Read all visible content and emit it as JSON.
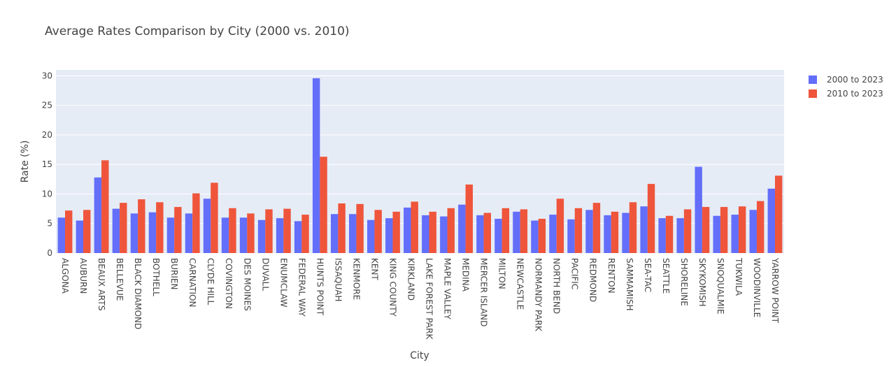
{
  "chart_data": {
    "type": "bar",
    "title": "Average Rates Comparison by City (2000 vs. 2010)",
    "xlabel": "City",
    "ylabel": "Rate (%)",
    "ylim": [
      0,
      31
    ],
    "yticks": [
      0,
      5,
      10,
      15,
      20,
      25,
      30
    ],
    "grid": true,
    "legend_position": "top-right",
    "categories": [
      "ALGONA",
      "AUBURN",
      "BEAUX ARTS",
      "BELLEVUE",
      "BLACK DIAMOND",
      "BOTHELL",
      "BURIEN",
      "CARNATION",
      "CLYDE HILL",
      "COVINGTON",
      "DES MOINES",
      "DUVALL",
      "ENUMCLAW",
      "FEDERAL WAY",
      "HUNTS POINT",
      "ISSAQUAH",
      "KENMORE",
      "KENT",
      "KING COUNTY",
      "KIRKLAND",
      "LAKE FOREST PARK",
      "MAPLE VALLEY",
      "MEDINA",
      "MERCER ISLAND",
      "MILTON",
      "NEWCASTLE",
      "NORMANDY PARK",
      "NORTH BEND",
      "PACIFIC",
      "REDMOND",
      "RENTON",
      "SAMMAMISH",
      "SEA-TAC",
      "SEATTLE",
      "SHORELINE",
      "SKYKOMISH",
      "SNOQUALMIE",
      "TUKWILA",
      "WOODINVILLE",
      "YARROW POINT"
    ],
    "series": [
      {
        "name": "2000 to 2023",
        "color": "#636efa",
        "values": [
          6.0,
          5.5,
          12.8,
          7.5,
          6.7,
          6.9,
          6.0,
          6.7,
          9.2,
          6.0,
          6.0,
          5.6,
          5.9,
          5.4,
          29.6,
          6.6,
          6.6,
          5.6,
          5.9,
          7.7,
          6.4,
          6.2,
          8.2,
          6.4,
          5.8,
          7.0,
          5.5,
          6.5,
          5.7,
          7.3,
          6.4,
          6.8,
          7.9,
          5.9,
          5.9,
          14.6,
          6.3,
          6.5,
          7.3,
          10.9
        ]
      },
      {
        "name": "2010 to 2023",
        "color": "#ef553b",
        "values": [
          7.2,
          7.3,
          15.7,
          8.5,
          9.1,
          8.6,
          7.8,
          10.1,
          11.9,
          7.6,
          6.7,
          7.4,
          7.5,
          6.5,
          16.3,
          8.4,
          8.3,
          7.3,
          7.0,
          8.7,
          7.0,
          7.6,
          11.6,
          6.8,
          7.6,
          7.4,
          5.8,
          9.2,
          7.6,
          8.5,
          7.0,
          8.6,
          11.7,
          6.3,
          7.4,
          7.8,
          7.8,
          7.9,
          8.8,
          13.1
        ]
      }
    ]
  }
}
